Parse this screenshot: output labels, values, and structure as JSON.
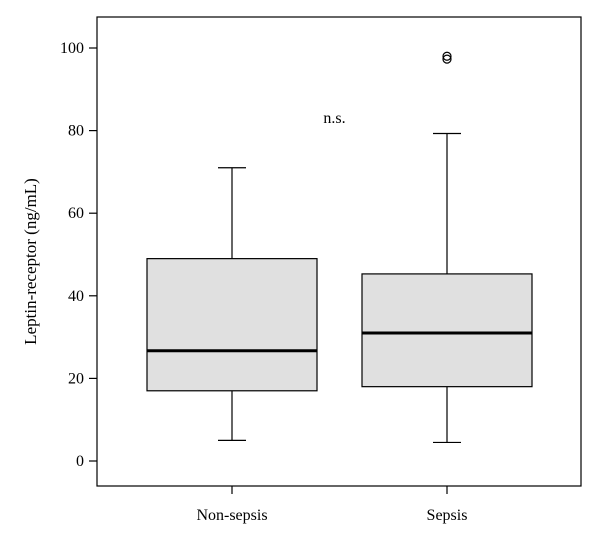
{
  "chart_data": {
    "type": "boxplot",
    "ylabel": "Leptin-receptor (ng/mL)",
    "xlabel": "",
    "ylim": [
      -6,
      107
    ],
    "yticks": [
      0,
      20,
      40,
      60,
      80,
      100
    ],
    "grid": false,
    "categories": [
      "Non-sepsis",
      "Sepsis"
    ],
    "boxes": [
      {
        "category": "Non-sepsis",
        "whisker_low": 5,
        "q1": 17,
        "median": 26.7,
        "q3": 49,
        "whisker_high": 71,
        "outliers": []
      },
      {
        "category": "Sepsis",
        "whisker_low": 4.5,
        "q1": 18,
        "median": 31,
        "q3": 45.3,
        "whisker_high": 79.3,
        "outliers": [
          97.3,
          98
        ]
      }
    ],
    "annotations": [
      {
        "text": "n.s.",
        "y": 83
      }
    ],
    "colors": {
      "box_fill": "#e0e0e0",
      "stroke": "#000000"
    }
  }
}
